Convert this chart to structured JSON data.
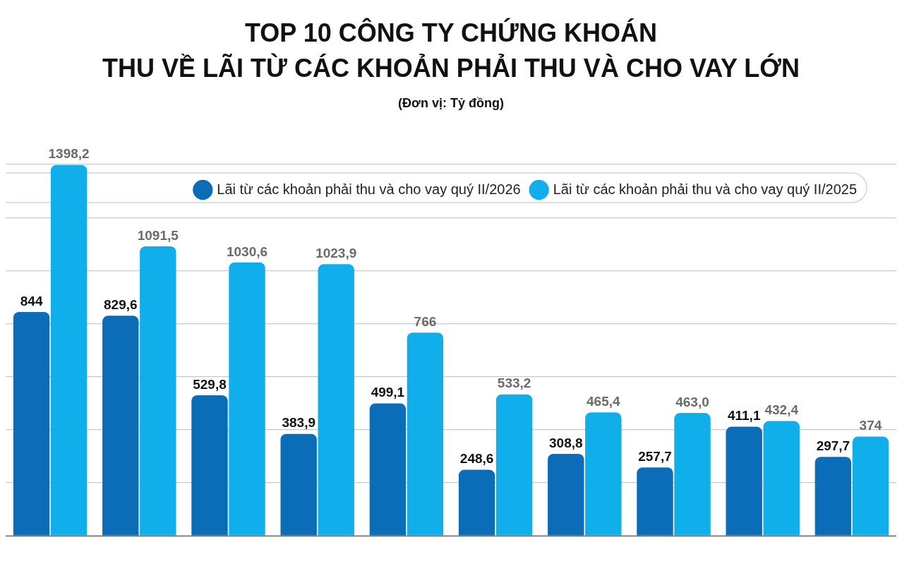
{
  "chart_data": {
    "type": "bar",
    "title": "TOP 10 CÔNG TY CHỨNG KHOÁN\nTHU VỀ LÃI TỪ CÁC KHOẢN PHẢI THU VÀ CHO VAY LỚN",
    "subtitle": "(Đơn vị: Tỷ đồng)",
    "categories": [
      null,
      null,
      null,
      null,
      null,
      null,
      null,
      null,
      null,
      null
    ],
    "series": [
      {
        "name": "Lãi từ các khoản phải thu và cho vay quý II/2026",
        "color": "#0b6db8",
        "values": [
          844,
          829.6,
          529.8,
          383.9,
          499.1,
          248.6,
          308.8,
          257.7,
          411.1,
          297.7
        ],
        "value_labels": [
          "844",
          "829,6",
          "529,8",
          "383,9",
          "499,1",
          "248,6",
          "308,8",
          "257,7",
          "411,1",
          "297,7"
        ]
      },
      {
        "name": "Lãi từ các khoản phải thu và cho vay quý II/2025",
        "color": "#10aeea",
        "values": [
          1398.2,
          1091.5,
          1030.6,
          1023.9,
          766,
          533.2,
          465.4,
          463.0,
          432.4,
          374
        ],
        "value_labels": [
          "1398,2",
          "1091,5",
          "1030,6",
          "1023,9",
          "766",
          "533,2",
          "465,4",
          "463,0",
          "432,4",
          "374"
        ]
      }
    ],
    "ylim": [
      0,
      1400
    ],
    "yticks": [
      {
        "value": 0,
        "label": null
      },
      {
        "value": 200,
        "label": null
      },
      {
        "value": 400,
        "label": null
      },
      {
        "value": 600,
        "label": null
      },
      {
        "value": 800,
        "label": null
      },
      {
        "value": 1000,
        "label": null
      },
      {
        "value": 1200,
        "label": null
      },
      {
        "value": 1400,
        "label": null
      }
    ],
    "grid": "y",
    "tick_labels": false,
    "legend": "top right"
  }
}
